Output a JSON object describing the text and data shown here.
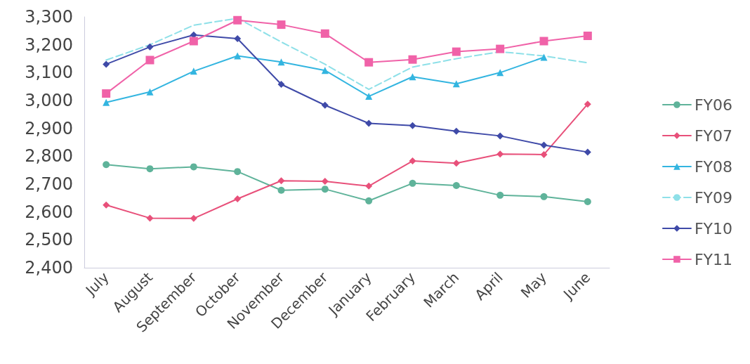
{
  "chart_data": {
    "type": "line",
    "categories": [
      "July",
      "August",
      "September",
      "October",
      "November",
      "December",
      "January",
      "February",
      "March",
      "April",
      "May",
      "June"
    ],
    "ylim": [
      2400,
      3300
    ],
    "yticks": [
      {
        "value": 2400,
        "label": "2,400"
      },
      {
        "value": 2500,
        "label": "2,500"
      },
      {
        "value": 2600,
        "label": "2,600"
      },
      {
        "value": 2700,
        "label": "2,700"
      },
      {
        "value": 2800,
        "label": "2,800"
      },
      {
        "value": 2900,
        "label": "2,900"
      },
      {
        "value": 3000,
        "label": "3,000"
      },
      {
        "value": 3100,
        "label": "3,100"
      },
      {
        "value": 3200,
        "label": "3,200"
      },
      {
        "value": 3300,
        "label": "3,300"
      }
    ],
    "grid": false,
    "legend": "right",
    "series": [
      {
        "name": "FY06",
        "color": "#5fb39a",
        "marker": "circle",
        "line_style": "solid",
        "values": [
          2770,
          2755,
          2762,
          2745,
          2678,
          2682,
          2640,
          2703,
          2695,
          2660,
          2655,
          2637
        ]
      },
      {
        "name": "FY07",
        "color": "#e8507a",
        "marker": "diamond",
        "line_style": "solid",
        "values": [
          2625,
          2578,
          2577,
          2647,
          2712,
          2710,
          2693,
          2783,
          2775,
          2808,
          2806,
          2987
        ]
      },
      {
        "name": "FY08",
        "color": "#33b5e0",
        "marker": "triangle",
        "line_style": "solid",
        "values": [
          2993,
          3031,
          3105,
          3160,
          3138,
          3108,
          3015,
          3085,
          3060,
          3100,
          3155,
          null
        ]
      },
      {
        "name": "FY09",
        "color": "#8ee0e8",
        "marker": "none",
        "line_style": "dashed",
        "values": [
          3145,
          3200,
          3270,
          3295,
          3210,
          3130,
          3040,
          3120,
          3150,
          3175,
          3160,
          3135
        ]
      },
      {
        "name": "FY10",
        "color": "#3f4aa8",
        "marker": "diamond",
        "line_style": "solid",
        "values": [
          3130,
          3192,
          3235,
          3222,
          3058,
          2983,
          2918,
          2910,
          2890,
          2873,
          2840,
          2815
        ]
      },
      {
        "name": "FY11",
        "color": "#f062a8",
        "marker": "square",
        "line_style": "solid",
        "values": [
          3025,
          3145,
          3213,
          3288,
          3272,
          3240,
          3137,
          3147,
          3175,
          3185,
          3213,
          3232
        ]
      }
    ]
  }
}
